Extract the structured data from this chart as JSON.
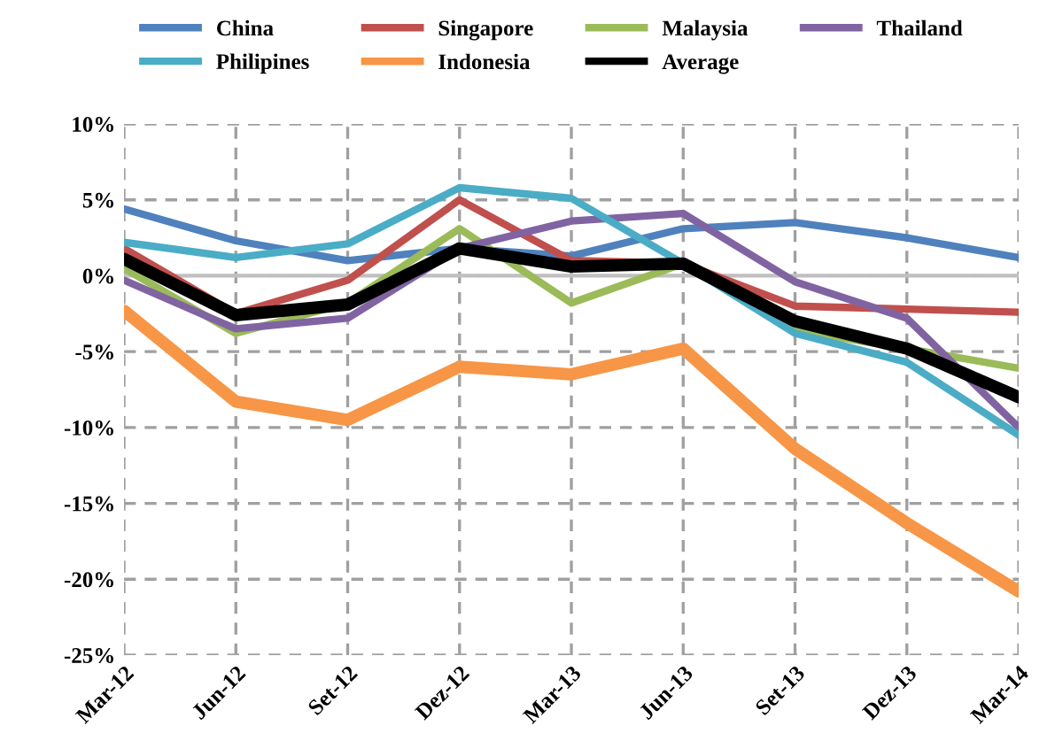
{
  "chart_data": {
    "type": "line",
    "categories": [
      "Mar-12",
      "Jun-12",
      "Set-12",
      "Dez-12",
      "Mar-13",
      "Jun-13",
      "Set-13",
      "Dez-13",
      "Mar-14"
    ],
    "series": [
      {
        "name": "China",
        "color": "#4f81bd",
        "values": [
          4.4,
          2.3,
          1.0,
          1.8,
          1.3,
          3.1,
          3.5,
          2.5,
          1.2
        ]
      },
      {
        "name": "Singapore",
        "color": "#c0504d",
        "values": [
          1.8,
          -2.5,
          -0.3,
          5.0,
          1.0,
          0.8,
          -2.0,
          -2.2,
          -2.4
        ]
      },
      {
        "name": "Malaysia",
        "color": "#9bbb59",
        "values": [
          0.5,
          -3.8,
          -1.8,
          3.1,
          -1.8,
          0.8,
          -3.6,
          -4.8,
          -6.1
        ]
      },
      {
        "name": "Thailand",
        "color": "#8064a2",
        "values": [
          -0.3,
          -3.5,
          -2.8,
          1.8,
          3.6,
          4.1,
          -0.4,
          -2.8,
          -10.0
        ]
      },
      {
        "name": "Philipines",
        "color": "#4bacc6",
        "values": [
          2.2,
          1.2,
          2.1,
          5.8,
          5.1,
          0.8,
          -3.8,
          -5.7,
          -10.5
        ]
      },
      {
        "name": "Indonesia",
        "color": "#f79646",
        "values": [
          -2.3,
          -8.3,
          -9.5,
          -6.0,
          -6.5,
          -4.8,
          -11.4,
          -16.3,
          -20.8
        ]
      },
      {
        "name": "Average",
        "color": "#000000",
        "values": [
          1.1,
          -2.6,
          -1.9,
          1.8,
          0.6,
          0.8,
          -3.0,
          -4.8,
          -8.0
        ]
      }
    ],
    "ylim": [
      -25,
      10
    ],
    "yticks": [
      {
        "value": -25,
        "label": "-25%"
      },
      {
        "value": -20,
        "label": "-20%"
      },
      {
        "value": -15,
        "label": "-15%"
      },
      {
        "value": -10,
        "label": "-10%"
      },
      {
        "value": -5,
        "label": "-5%"
      },
      {
        "value": 0,
        "label": "0%"
      },
      {
        "value": 5,
        "label": "5%"
      },
      {
        "value": 10,
        "label": "10%"
      }
    ],
    "grid": true,
    "legend": "top",
    "marker": "none",
    "line_style": "solid"
  }
}
